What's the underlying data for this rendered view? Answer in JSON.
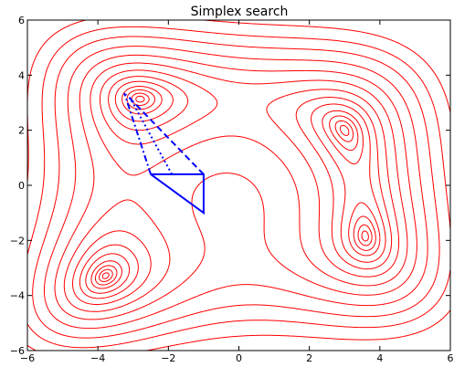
{
  "chart_data": {
    "type": "line",
    "title": "Simplex search",
    "xlabel": "",
    "ylabel": "",
    "xlim": [
      -6,
      6
    ],
    "ylim": [
      -6,
      6
    ],
    "xticks": [
      -6,
      -4,
      -2,
      0,
      2,
      4,
      6
    ],
    "yticks": [
      -6,
      -4,
      -2,
      0,
      2,
      4,
      6
    ],
    "xtick_labels": [
      "−6",
      "−4",
      "−2",
      "0",
      "2",
      "4",
      "6"
    ],
    "ytick_labels": [
      "−6",
      "−4",
      "−2",
      "0",
      "2",
      "4",
      "6"
    ],
    "grid": false,
    "contour": {
      "function": "(x^2 + y - 11)^2 + (x + y^2 - 7)^2",
      "color": "#ff0000",
      "levels": [
        0.5,
        2,
        5,
        10,
        20,
        35,
        60,
        100,
        160,
        250,
        380,
        550,
        800
      ]
    },
    "series": [
      {
        "style": "solid",
        "color": "#0000ff",
        "x": [
          -2.5,
          -1.0,
          -1.0,
          -2.5
        ],
        "y": [
          0.4,
          0.4,
          -1.0,
          0.4
        ]
      },
      {
        "style": "dashed",
        "color": "#0000ff",
        "x": [
          -1.0,
          -3.2
        ],
        "y": [
          0.4,
          3.3
        ]
      },
      {
        "style": "dotted",
        "color": "#0000ff",
        "x": [
          -1.9,
          -3.1
        ],
        "y": [
          0.4,
          3.2
        ]
      },
      {
        "style": "dashdot",
        "color": "#0000ff",
        "x": [
          -2.5,
          -3.25
        ],
        "y": [
          0.4,
          3.35
        ]
      }
    ]
  }
}
